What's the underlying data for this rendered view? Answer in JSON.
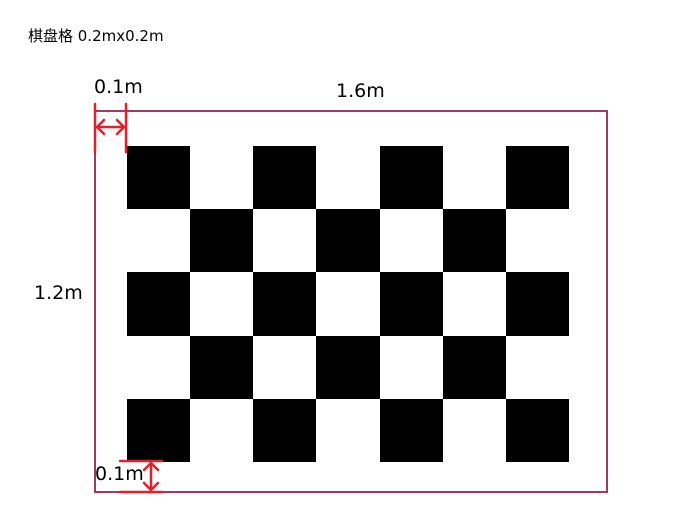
{
  "title": "棋盘格 0.2mx0.2m",
  "dimensions": {
    "top_margin": "0.1m",
    "width": "1.6m",
    "height": "1.2m",
    "bottom_margin": "0.1m"
  },
  "board": {
    "columns": 7,
    "rows": 5,
    "top_left": "dark"
  },
  "colors": {
    "frame": "#9c3c66",
    "dimension_marks": "#e0202a",
    "dark_square": "#000000",
    "light_square": "#ffffff"
  }
}
